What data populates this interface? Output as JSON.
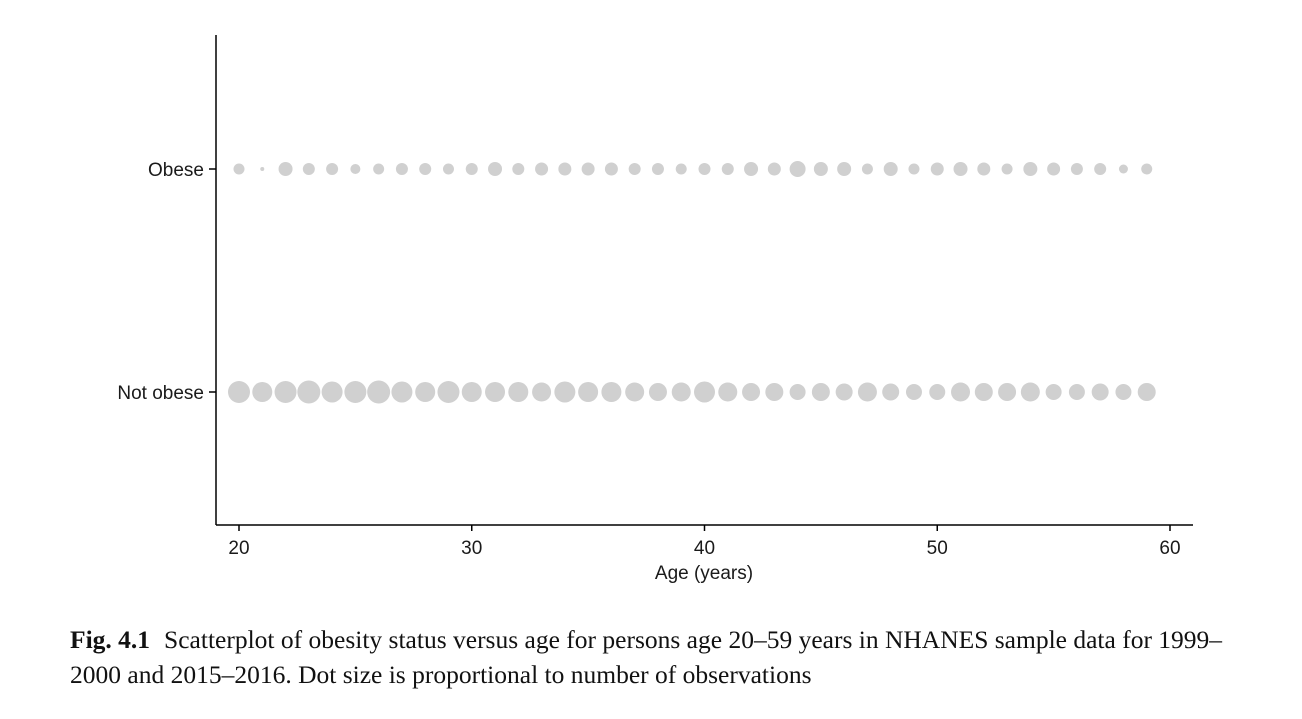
{
  "chart_data": {
    "type": "scatter",
    "xlabel": "Age (years)",
    "ylabel": "",
    "xlim": [
      19.2,
      61.0
    ],
    "x_ticks": [
      20,
      30,
      40,
      50,
      60
    ],
    "y_categories": [
      "Not obese",
      "Obese"
    ],
    "grid": false,
    "legend": "none",
    "dot_color": "#d0d0d0",
    "series": [
      {
        "category": "Obese",
        "x": [
          20,
          21,
          22,
          23,
          24,
          25,
          26,
          27,
          28,
          29,
          30,
          31,
          32,
          33,
          34,
          35,
          36,
          37,
          38,
          39,
          40,
          41,
          42,
          43,
          44,
          45,
          46,
          47,
          48,
          49,
          50,
          51,
          52,
          53,
          54,
          55,
          56,
          57,
          58,
          59
        ],
        "size": [
          11,
          4,
          14,
          12,
          12,
          10,
          11,
          12,
          12,
          11,
          12,
          14,
          12,
          13,
          13,
          13,
          13,
          12,
          12,
          11,
          12,
          12,
          14,
          13,
          16,
          14,
          14,
          11,
          14,
          11,
          13,
          14,
          13,
          11,
          14,
          13,
          12,
          12,
          9,
          11
        ]
      },
      {
        "category": "Not obese",
        "x": [
          20,
          21,
          22,
          23,
          24,
          25,
          26,
          27,
          28,
          29,
          30,
          31,
          32,
          33,
          34,
          35,
          36,
          37,
          38,
          39,
          40,
          41,
          42,
          43,
          44,
          45,
          46,
          47,
          48,
          49,
          50,
          51,
          52,
          53,
          54,
          55,
          56,
          57,
          58,
          59
        ],
        "size": [
          22,
          20,
          22,
          23,
          21,
          22,
          23,
          21,
          20,
          22,
          20,
          20,
          20,
          19,
          21,
          20,
          20,
          19,
          18,
          19,
          21,
          19,
          18,
          18,
          16,
          18,
          17,
          19,
          17,
          16,
          16,
          19,
          18,
          18,
          19,
          16,
          16,
          17,
          16,
          18
        ]
      }
    ]
  },
  "caption": {
    "label": "Fig. 4.1",
    "text": "Scatterplot of obesity status versus age for persons age 20–59 years in NHANES sample data for 1999–2000 and 2015–2016. Dot size is proportional to number of observations"
  }
}
